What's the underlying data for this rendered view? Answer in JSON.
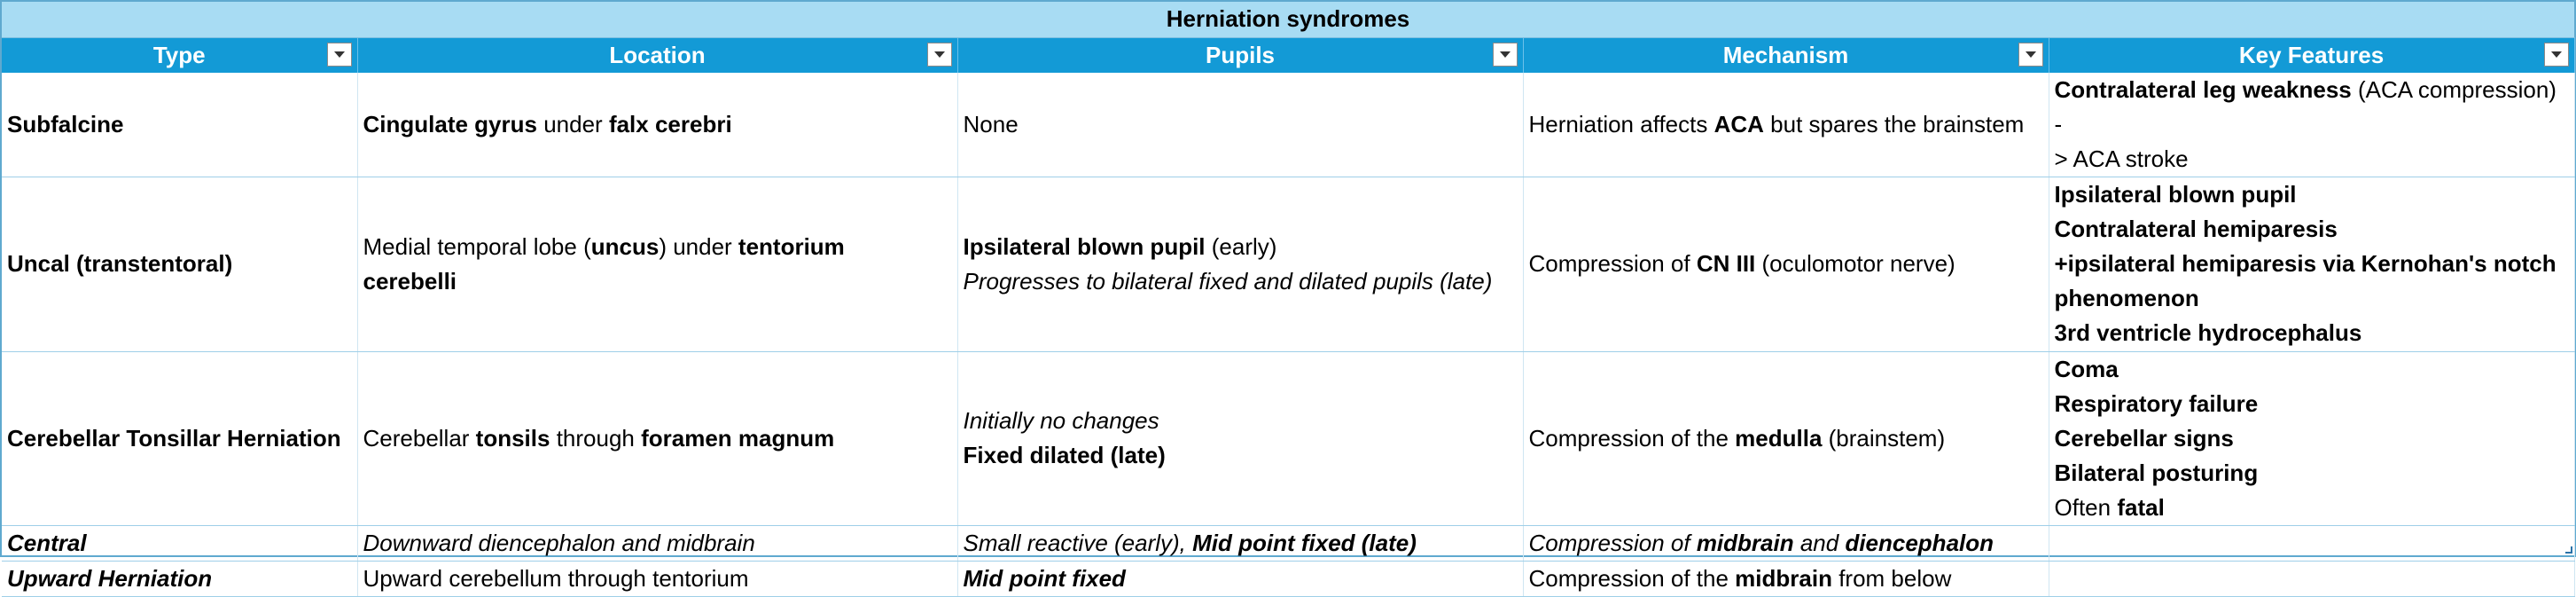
{
  "table": {
    "title": "Herniation syndromes",
    "headers": [
      "Type",
      "Location",
      "Pupils",
      "Mechanism",
      "Key Features"
    ],
    "rows": [
      {
        "type": "Subfalcine",
        "location": [
          "Cingulate gyrus",
          " under ",
          "falx cerebri"
        ],
        "pupils": [
          "None"
        ],
        "mechanism": [
          "Herniation affects ",
          "ACA",
          " but spares the brainstem"
        ],
        "key_features": [
          "Contralateral leg weakness",
          " (ACA compression) -",
          "> ACA stroke"
        ]
      },
      {
        "type": "Uncal (transtentoral)",
        "location": [
          "Medial temporal lobe (",
          "uncus",
          ") under ",
          "tentorium",
          "cerebelli"
        ],
        "pupils": [
          "Ipsilateral blown pupil",
          " (early)",
          "Progresses to bilateral fixed and dilated pupils (late)"
        ],
        "mechanism": [
          "Compression of ",
          "CN III",
          " (oculomotor nerve)"
        ],
        "key_features": [
          "Ipsilateral blown pupil",
          "Contralateral hemiparesis",
          "+ipsilateral hemiparesis via Kernohan's notch",
          "phenomenon",
          "3rd ventricle hydrocephalus"
        ]
      },
      {
        "type": "Cerebellar Tonsillar Herniation",
        "location": [
          "Cerebellar ",
          "tonsils",
          " through ",
          "foramen magnum"
        ],
        "pupils": [
          "Initially no changes",
          "Fixed dilated (late)"
        ],
        "mechanism": [
          "Compression of the ",
          "medulla",
          " (brainstem)"
        ],
        "key_features": [
          "Coma",
          "Respiratory failure",
          "Cerebellar signs",
          "Bilateral posturing",
          "Often ",
          "fatal"
        ]
      },
      {
        "type": "Central",
        "location": [
          "Downward diencephalon and midbrain"
        ],
        "pupils": [
          "Small reactive (early), ",
          "Mid point fixed (late)"
        ],
        "mechanism": [
          "Compression of ",
          "midbrain",
          " and ",
          "diencephalon"
        ],
        "key_features": []
      },
      {
        "type": "Upward Herniation",
        "location": [
          "Upward cerebellum through tentorium"
        ],
        "pupils": [
          "Mid point fixed"
        ],
        "mechanism": [
          "Compression of the ",
          "midbrain",
          " from below"
        ],
        "key_features": []
      }
    ]
  },
  "icons": {
    "filter": "filter-dropdown-icon",
    "resize": "table-resize-handle-icon"
  },
  "colors": {
    "title_bg": "#a8dcf3",
    "header_bg": "#139ad6",
    "header_text": "#ffffff",
    "border": "#9fcfe8"
  }
}
